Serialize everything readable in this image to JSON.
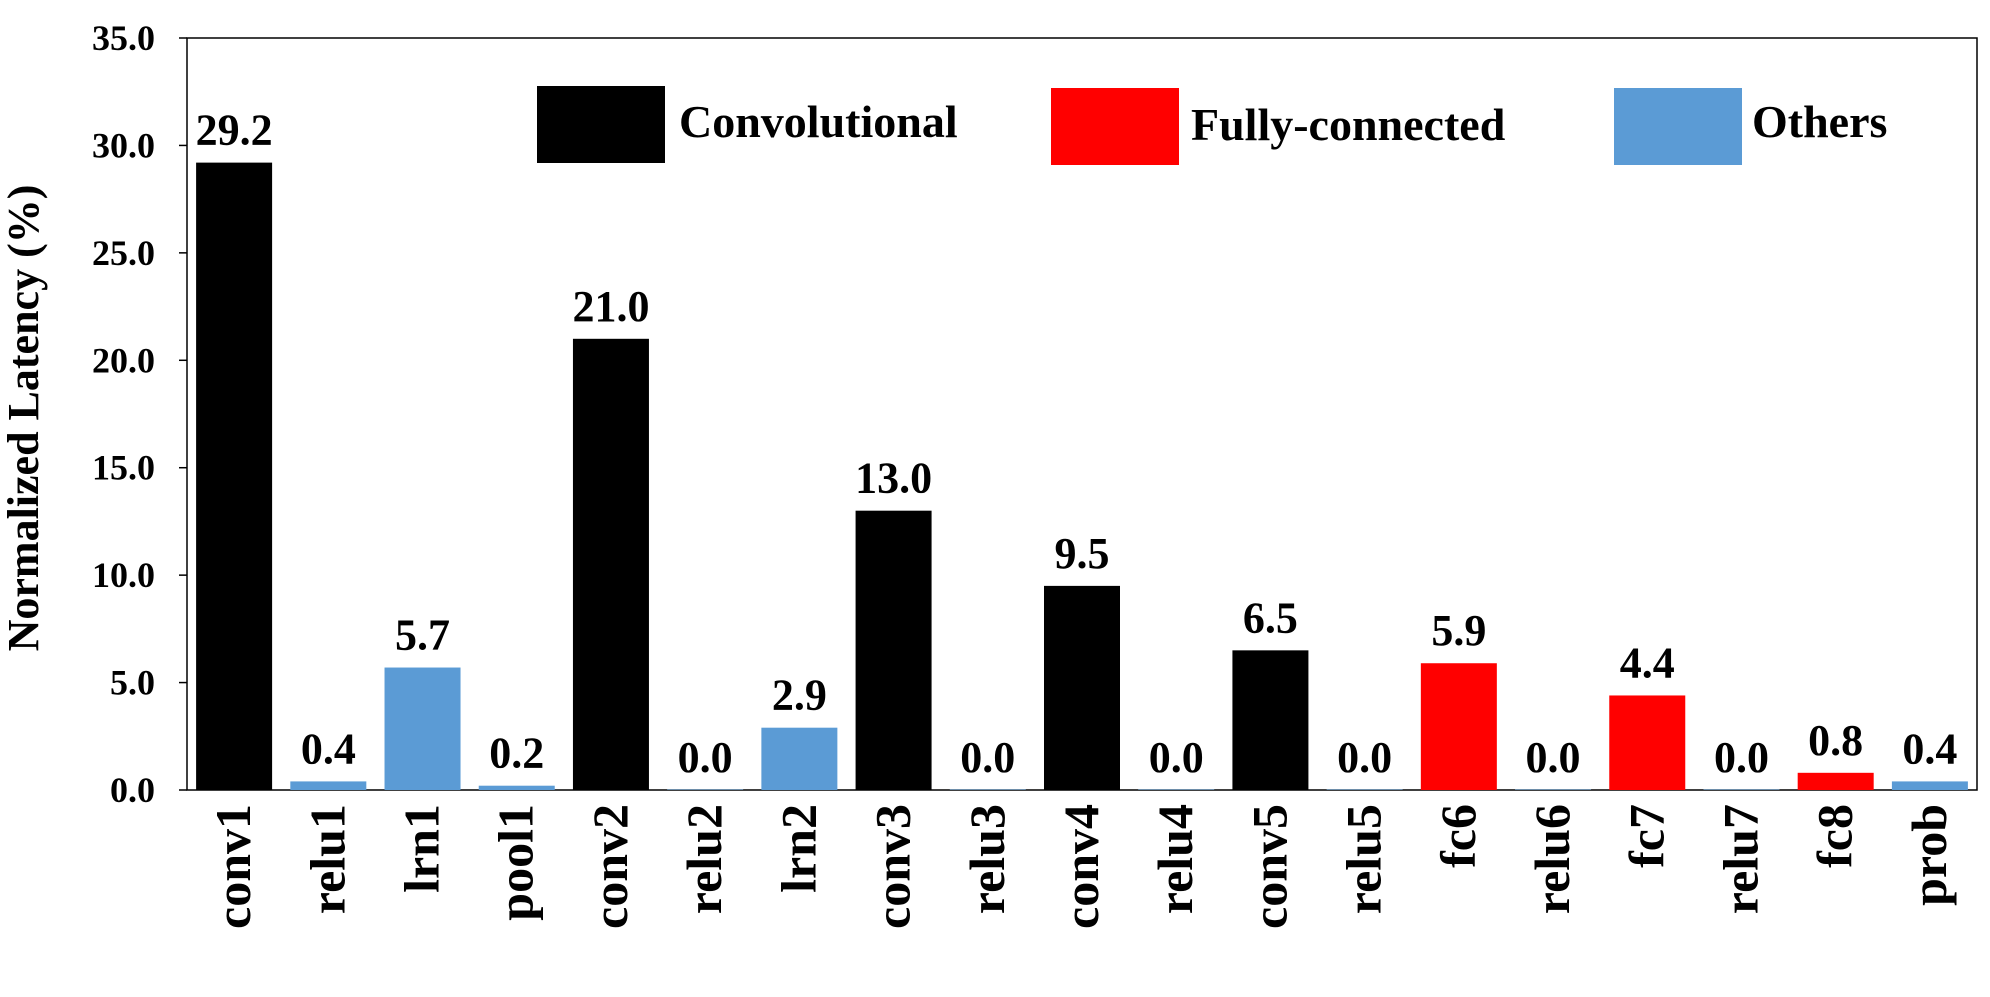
{
  "chart_data": {
    "type": "bar",
    "title": "",
    "xlabel": "",
    "ylabel": "Normalized Latency (%)",
    "ylim": [
      0,
      35
    ],
    "yticks": [
      "0.0",
      "5.0",
      "10.0",
      "15.0",
      "20.0",
      "25.0",
      "30.0",
      "35.0"
    ],
    "grid": false,
    "legend_position": "top",
    "categories": [
      "conv1",
      "relu1",
      "lrn1",
      "pool1",
      "conv2",
      "relu2",
      "lrn2",
      "conv3",
      "relu3",
      "conv4",
      "relu4",
      "conv5",
      "relu5",
      "fc6",
      "relu6",
      "fc7",
      "relu7",
      "fc8",
      "prob"
    ],
    "values": [
      29.2,
      0.4,
      5.7,
      0.2,
      21.0,
      0.0,
      2.9,
      13.0,
      0.0,
      9.5,
      0.0,
      6.5,
      0.0,
      5.9,
      0.0,
      4.4,
      0.0,
      0.8,
      0.4
    ],
    "value_labels": [
      "29.2",
      "0.4",
      "5.7",
      "0.2",
      "21.0",
      "0.0",
      "2.9",
      "13.0",
      "0.0",
      "9.5",
      "0.0",
      "6.5",
      "0.0",
      "5.9",
      "0.0",
      "4.4",
      "0.0",
      "0.8",
      "0.4"
    ],
    "bar_types": [
      "Convolutional",
      "Others",
      "Others",
      "Others",
      "Convolutional",
      "Others",
      "Others",
      "Convolutional",
      "Others",
      "Convolutional",
      "Others",
      "Convolutional",
      "Others",
      "Fully-connected",
      "Others",
      "Fully-connected",
      "Others",
      "Fully-connected",
      "Others"
    ],
    "legend": [
      {
        "name": "Convolutional",
        "color": "#000000"
      },
      {
        "name": "Fully-connected",
        "color": "#ff0000"
      },
      {
        "name": "Others",
        "color": "#5b9bd5"
      }
    ]
  }
}
